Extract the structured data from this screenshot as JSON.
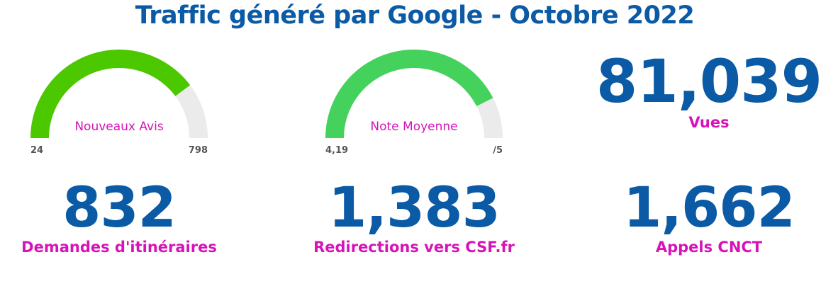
{
  "title": "Traffic généré par Google - Octobre 2022",
  "colors": {
    "title": "#0b5aa5",
    "value": "#0b5aa5",
    "label": "#d613b8",
    "gauge_track": "#ebebeb",
    "gauge1_fill": "#4cc800",
    "gauge2_fill": "#44d25c",
    "gauge_min_max_text": "#555555"
  },
  "chart_data": [
    {
      "type": "gauge",
      "label": "Nouveaux Avis",
      "value": 640,
      "min_label": "24",
      "max_label": "798",
      "min": 24,
      "max": 798
    },
    {
      "type": "gauge",
      "label": "Note Moyenne",
      "value": 0.85,
      "value_is_fraction": true,
      "min_label": "4,19",
      "max_label": "/5"
    },
    {
      "type": "kpi",
      "value": "81,039",
      "label": "Vues"
    },
    {
      "type": "kpi",
      "value": "832",
      "label": "Demandes d'itinéraires"
    },
    {
      "type": "kpi",
      "value": "1,383",
      "label": "Redirections vers CSF.fr"
    },
    {
      "type": "kpi",
      "value": "1,662",
      "label": "Appels CNCT"
    }
  ]
}
